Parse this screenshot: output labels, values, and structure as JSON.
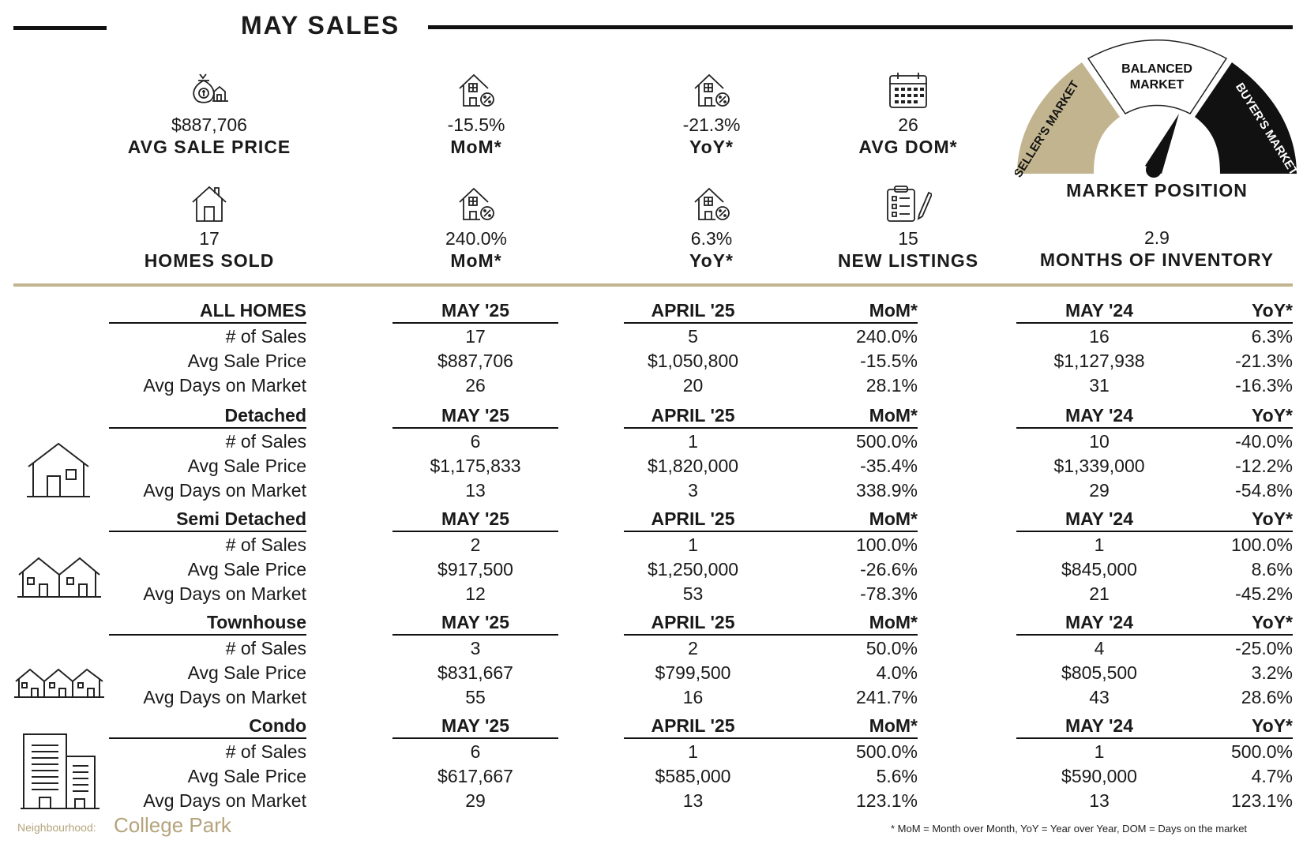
{
  "header": {
    "title": "MAY SALES"
  },
  "stats_top": [
    {
      "icon": "money-bag-house-icon",
      "value": "$887,706",
      "label": "AVG SALE PRICE"
    },
    {
      "icon": "house-percent-icon",
      "value": "-15.5%",
      "label": "MoM*"
    },
    {
      "icon": "house-percent-icon",
      "value": "-21.3%",
      "label": "YoY*"
    },
    {
      "icon": "calendar-icon",
      "value": "26",
      "label": "AVG DOM*"
    }
  ],
  "stats_bottom": [
    {
      "icon": "house-icon",
      "value": "17",
      "label": "HOMES SOLD"
    },
    {
      "icon": "house-percent-icon",
      "value": "240.0%",
      "label": "MoM*"
    },
    {
      "icon": "house-percent-icon",
      "value": "6.3%",
      "label": "YoY*"
    },
    {
      "icon": "clipboard-pencil-icon",
      "value": "15",
      "label": "NEW LISTINGS"
    }
  ],
  "market_position": {
    "seller": "SELLER'S MARKET",
    "balanced_line1": "BALANCED",
    "balanced_line2": "MARKET",
    "buyer": "BUYER'S MARKET",
    "label": "MARKET POSITION",
    "needle": "balanced",
    "colors": {
      "seller": "#c2b48e",
      "balanced": "#ffffff",
      "buyer": "#111111"
    }
  },
  "months_of_inventory": {
    "value": "2.9",
    "label": "MONTHS OF INVENTORY"
  },
  "table": {
    "columns": {
      "current": "MAY '25",
      "prev": "APRIL '25",
      "mom": "MoM*",
      "last_year": "MAY '24",
      "yoy": "YoY*"
    },
    "row_labels": [
      "# of Sales",
      "Avg Sale Price",
      "Avg Days on Market"
    ],
    "sections": [
      {
        "name": "ALL HOMES",
        "icon": "",
        "rows": [
          {
            "current": "17",
            "prev": "5",
            "mom": "240.0%",
            "last_year": "16",
            "yoy": "6.3%"
          },
          {
            "current": "$887,706",
            "prev": "$1,050,800",
            "mom": "-15.5%",
            "last_year": "$1,127,938",
            "yoy": "-21.3%"
          },
          {
            "current": "26",
            "prev": "20",
            "mom": "28.1%",
            "last_year": "31",
            "yoy": "-16.3%"
          }
        ]
      },
      {
        "name": "Detached",
        "icon": "detached-house-icon",
        "rows": [
          {
            "current": "6",
            "prev": "1",
            "mom": "500.0%",
            "last_year": "10",
            "yoy": "-40.0%"
          },
          {
            "current": "$1,175,833",
            "prev": "$1,820,000",
            "mom": "-35.4%",
            "last_year": "$1,339,000",
            "yoy": "-12.2%"
          },
          {
            "current": "13",
            "prev": "3",
            "mom": "338.9%",
            "last_year": "29",
            "yoy": "-54.8%"
          }
        ]
      },
      {
        "name": "Semi Detached",
        "icon": "semi-detached-icon",
        "rows": [
          {
            "current": "2",
            "prev": "1",
            "mom": "100.0%",
            "last_year": "1",
            "yoy": "100.0%"
          },
          {
            "current": "$917,500",
            "prev": "$1,250,000",
            "mom": "-26.6%",
            "last_year": "$845,000",
            "yoy": "8.6%"
          },
          {
            "current": "12",
            "prev": "53",
            "mom": "-78.3%",
            "last_year": "21",
            "yoy": "-45.2%"
          }
        ]
      },
      {
        "name": "Townhouse",
        "icon": "townhouse-icon",
        "rows": [
          {
            "current": "3",
            "prev": "2",
            "mom": "50.0%",
            "last_year": "4",
            "yoy": "-25.0%"
          },
          {
            "current": "$831,667",
            "prev": "$799,500",
            "mom": "4.0%",
            "last_year": "$805,500",
            "yoy": "3.2%"
          },
          {
            "current": "55",
            "prev": "16",
            "mom": "241.7%",
            "last_year": "43",
            "yoy": "28.6%"
          }
        ]
      },
      {
        "name": "Condo",
        "icon": "condo-building-icon",
        "rows": [
          {
            "current": "6",
            "prev": "1",
            "mom": "500.0%",
            "last_year": "1",
            "yoy": "500.0%"
          },
          {
            "current": "$617,667",
            "prev": "$585,000",
            "mom": "5.6%",
            "last_year": "$590,000",
            "yoy": "4.7%"
          },
          {
            "current": "29",
            "prev": "13",
            "mom": "123.1%",
            "last_year": "13",
            "yoy": "123.1%"
          }
        ]
      }
    ]
  },
  "footer": {
    "neighbourhood_label": "Neighbourhood:",
    "neighbourhood": "College Park",
    "footnote": "* MoM = Month over Month, YoY = Year over Year, DOM = Days on the market"
  }
}
